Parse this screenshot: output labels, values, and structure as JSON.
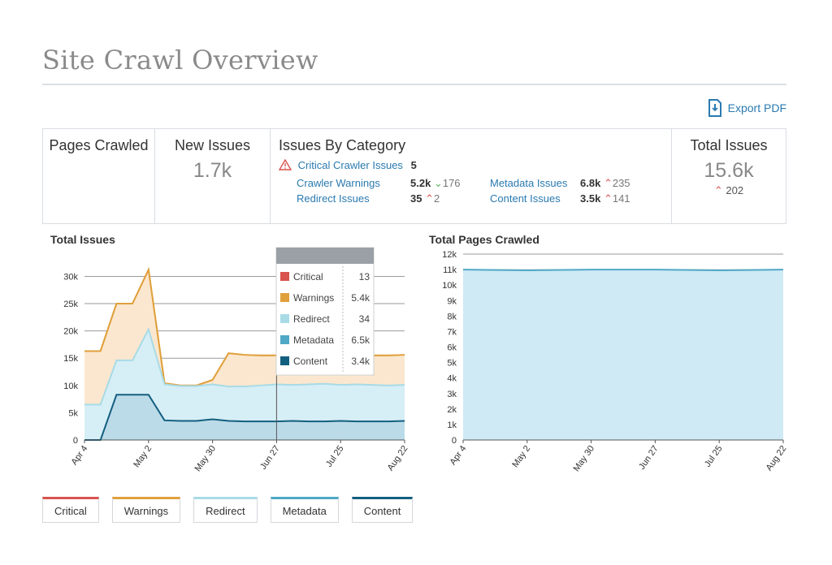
{
  "page": {
    "title": "Site Crawl Overview",
    "export_label": "Export PDF"
  },
  "summary": {
    "pages_crawled": {
      "label": "Pages Crawled"
    },
    "new_issues": {
      "label": "New Issues",
      "value": "1.7k"
    },
    "issues_by_category": {
      "label": "Issues By Category",
      "critical": {
        "label": "Critical Crawler Issues",
        "value": "5"
      },
      "crawler_warnings": {
        "label": "Crawler Warnings",
        "value": "5.2k",
        "delta": "176",
        "direction": "down"
      },
      "redirect_issues": {
        "label": "Redirect Issues",
        "value": "35",
        "delta": "2",
        "direction": "up"
      },
      "metadata_issues": {
        "label": "Metadata Issues",
        "value": "6.8k",
        "delta": "235",
        "direction": "up"
      },
      "content_issues": {
        "label": "Content Issues",
        "value": "3.5k",
        "delta": "141",
        "direction": "up"
      }
    },
    "total_issues": {
      "label": "Total Issues",
      "value": "15.6k",
      "delta": "202",
      "direction": "up"
    }
  },
  "tooltip": {
    "rows": [
      {
        "label": "Critical",
        "value": "13",
        "color": "#d9534f"
      },
      {
        "label": "Warnings",
        "value": "5.4k",
        "color": "#e0a03c"
      },
      {
        "label": "Redirect",
        "value": "34",
        "color": "#a8dbe6"
      },
      {
        "label": "Metadata",
        "value": "6.5k",
        "color": "#4fa8c6"
      },
      {
        "label": "Content",
        "value": "3.4k",
        "color": "#135f80"
      }
    ]
  },
  "legend": [
    {
      "label": "Critical",
      "color": "#d9534f"
    },
    {
      "label": "Warnings",
      "color": "#e0a03c"
    },
    {
      "label": "Redirect",
      "color": "#a8dbe6"
    },
    {
      "label": "Metadata",
      "color": "#4fa8c6"
    },
    {
      "label": "Content",
      "color": "#135f80"
    }
  ],
  "chart_data": [
    {
      "type": "area",
      "title": "Total Issues",
      "x": [
        "Apr 4",
        "Apr 11",
        "Apr 18",
        "Apr 25",
        "May 2",
        "May 9",
        "May 16",
        "May 23",
        "May 30",
        "Jun 6",
        "Jun 13",
        "Jun 20",
        "Jun 27",
        "Jul 4",
        "Jul 11",
        "Jul 18",
        "Jul 25",
        "Aug 1",
        "Aug 8",
        "Aug 15",
        "Aug 22"
      ],
      "xticks": [
        "Apr 4",
        "May 2",
        "May 30",
        "Jun 27",
        "Jul 25",
        "Aug 22"
      ],
      "yticks": [
        "0",
        "5k",
        "10k",
        "15k",
        "20k",
        "25k",
        "30k"
      ],
      "ylim": [
        0,
        32000
      ],
      "series": [
        {
          "name": "Content",
          "values": [
            0,
            0,
            8300,
            8300,
            8300,
            3600,
            3500,
            3500,
            3800,
            3500,
            3400,
            3400,
            3400,
            3500,
            3400,
            3400,
            3500,
            3400,
            3400,
            3400,
            3500
          ]
        },
        {
          "name": "Metadata",
          "values": [
            6500,
            6500,
            14600,
            14600,
            20300,
            10200,
            9900,
            9900,
            10200,
            9800,
            9800,
            10000,
            10200,
            10100,
            10200,
            10300,
            10100,
            10200,
            10100,
            10000,
            10100
          ]
        },
        {
          "name": "Redirect",
          "values": [
            6500,
            6500,
            14600,
            14600,
            20300,
            10200,
            9900,
            9900,
            10200,
            9800,
            9800,
            10000,
            10200,
            10100,
            10200,
            10300,
            10100,
            10200,
            10100,
            10000,
            10100
          ]
        },
        {
          "name": "Warnings",
          "values": [
            16300,
            16300,
            25000,
            25000,
            31200,
            10400,
            10000,
            10000,
            11000,
            15900,
            15600,
            15500,
            15500,
            15600,
            15700,
            15600,
            15700,
            15600,
            15500,
            15500,
            15600
          ]
        },
        {
          "name": "Critical",
          "values": [
            16300,
            16300,
            25000,
            25000,
            31200,
            10400,
            10000,
            10000,
            11000,
            15900,
            15600,
            15500,
            15500,
            15600,
            15700,
            15600,
            15700,
            15600,
            15500,
            15500,
            15600
          ]
        }
      ],
      "hover_x": "Jun 27",
      "grid": true
    },
    {
      "type": "area",
      "title": "Total Pages Crawled",
      "x": [
        "Apr 4",
        "May 2",
        "May 30",
        "Jun 27",
        "Jul 25",
        "Aug 22"
      ],
      "xticks": [
        "Apr 4",
        "May 2",
        "May 30",
        "Jun 27",
        "Jul 25",
        "Aug 22"
      ],
      "yticks": [
        "0",
        "1k",
        "2k",
        "3k",
        "4k",
        "5k",
        "6k",
        "7k",
        "8k",
        "9k",
        "10k",
        "11k",
        "12k"
      ],
      "ylim": [
        0,
        12000
      ],
      "series": [
        {
          "values": [
            11000,
            10950,
            11000,
            11000,
            10950,
            11000
          ]
        }
      ],
      "grid": true
    }
  ]
}
